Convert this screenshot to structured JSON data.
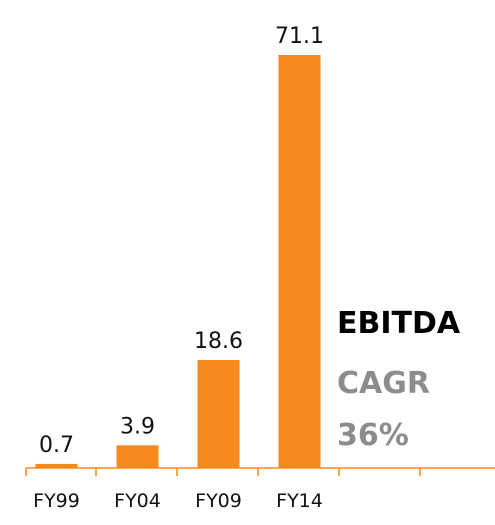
{
  "chart_data": {
    "type": "bar",
    "categories": [
      "FY99",
      "FY04",
      "FY09",
      "FY14",
      null,
      null
    ],
    "values": [
      0.7,
      3.9,
      18.6,
      71.1,
      null,
      null
    ],
    "color": "#f7891f",
    "annotations": [
      {
        "text": "EBITDA",
        "color": "#000000"
      },
      {
        "text": "CAGR",
        "color": "#8c8c8c"
      },
      {
        "text": "36%",
        "color": "#8c8c8c"
      }
    ]
  }
}
